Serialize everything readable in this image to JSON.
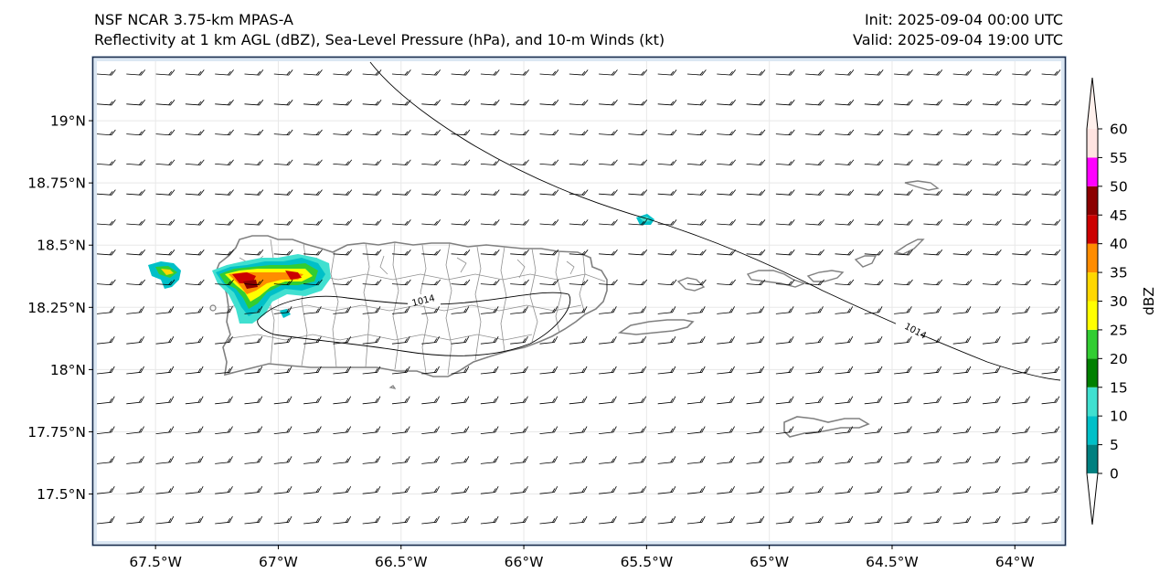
{
  "header": {
    "title_line1": "NSF NCAR 3.75-km MPAS-A",
    "title_line2": "Reflectivity at 1 km AGL (dBZ), Sea-Level Pressure (hPa), and 10-m Winds (kt)",
    "init_label": "Init: 2025-09-04 00:00 UTC",
    "valid_label": "Valid: 2025-09-04 19:00 UTC"
  },
  "map": {
    "lon_range": [
      -67.75,
      -63.8
    ],
    "lat_range": [
      17.3,
      19.25
    ],
    "lon_ticks": [
      {
        "value": -67.5,
        "label": "67.5°W"
      },
      {
        "value": -67.0,
        "label": "67°W"
      },
      {
        "value": -66.5,
        "label": "66.5°W"
      },
      {
        "value": -66.0,
        "label": "66°W"
      },
      {
        "value": -65.5,
        "label": "65.5°W"
      },
      {
        "value": -65.0,
        "label": "65°W"
      },
      {
        "value": -64.5,
        "label": "64.5°W"
      },
      {
        "value": -64.0,
        "label": "64°W"
      }
    ],
    "lat_ticks": [
      {
        "value": 19.0,
        "label": "19°N"
      },
      {
        "value": 18.75,
        "label": "18.75°N"
      },
      {
        "value": 18.5,
        "label": "18.5°N"
      },
      {
        "value": 18.25,
        "label": "18.25°N"
      },
      {
        "value": 18.0,
        "label": "18°N"
      },
      {
        "value": 17.75,
        "label": "17.75°N"
      },
      {
        "value": 17.5,
        "label": "17.5°N"
      }
    ],
    "isobar_labels": [
      {
        "text": "1014",
        "lon": -66.43,
        "lat": 18.24
      },
      {
        "text": "1014",
        "lon": -64.53,
        "lat": 18.12
      }
    ],
    "colors": {
      "frame": "#1a2b4a",
      "coast": "#808080",
      "municipal": "#909090",
      "isobar": "#000000",
      "barb": "#000000",
      "ocean_edge": "#dbe7f3"
    }
  },
  "colorbar": {
    "label": "dBZ",
    "levels": [
      {
        "value": 0,
        "label": "0"
      },
      {
        "value": 5,
        "label": "5"
      },
      {
        "value": 10,
        "label": "10"
      },
      {
        "value": 15,
        "label": "15"
      },
      {
        "value": 20,
        "label": "20"
      },
      {
        "value": 25,
        "label": "25"
      },
      {
        "value": 30,
        "label": "30"
      },
      {
        "value": 35,
        "label": "35"
      },
      {
        "value": 40,
        "label": "40"
      },
      {
        "value": 45,
        "label": "45"
      },
      {
        "value": 50,
        "label": "50"
      },
      {
        "value": 55,
        "label": "55"
      },
      {
        "value": 60,
        "label": "60"
      }
    ],
    "bin_colors": [
      "#008080",
      "#00c0c8",
      "#40e0d0",
      "#008000",
      "#32cd32",
      "#ffff00",
      "#ffd700",
      "#ff8c00",
      "#cc0000",
      "#8b0000",
      "#ff00ff",
      "#ffe4e1"
    ],
    "under_color": "#ffffff",
    "over_color": "#fff0ec"
  }
}
